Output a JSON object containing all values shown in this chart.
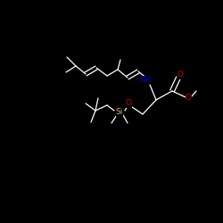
{
  "background_color": "#000000",
  "bond_color": "#ffffff",
  "atom_colors": {
    "N": "#0000cd",
    "O": "#cc0000",
    "Si": "#c8b870",
    "C": "#ffffff",
    "H": "#ffffff"
  },
  "figsize": [
    2.5,
    2.5
  ],
  "dpi": 100
}
